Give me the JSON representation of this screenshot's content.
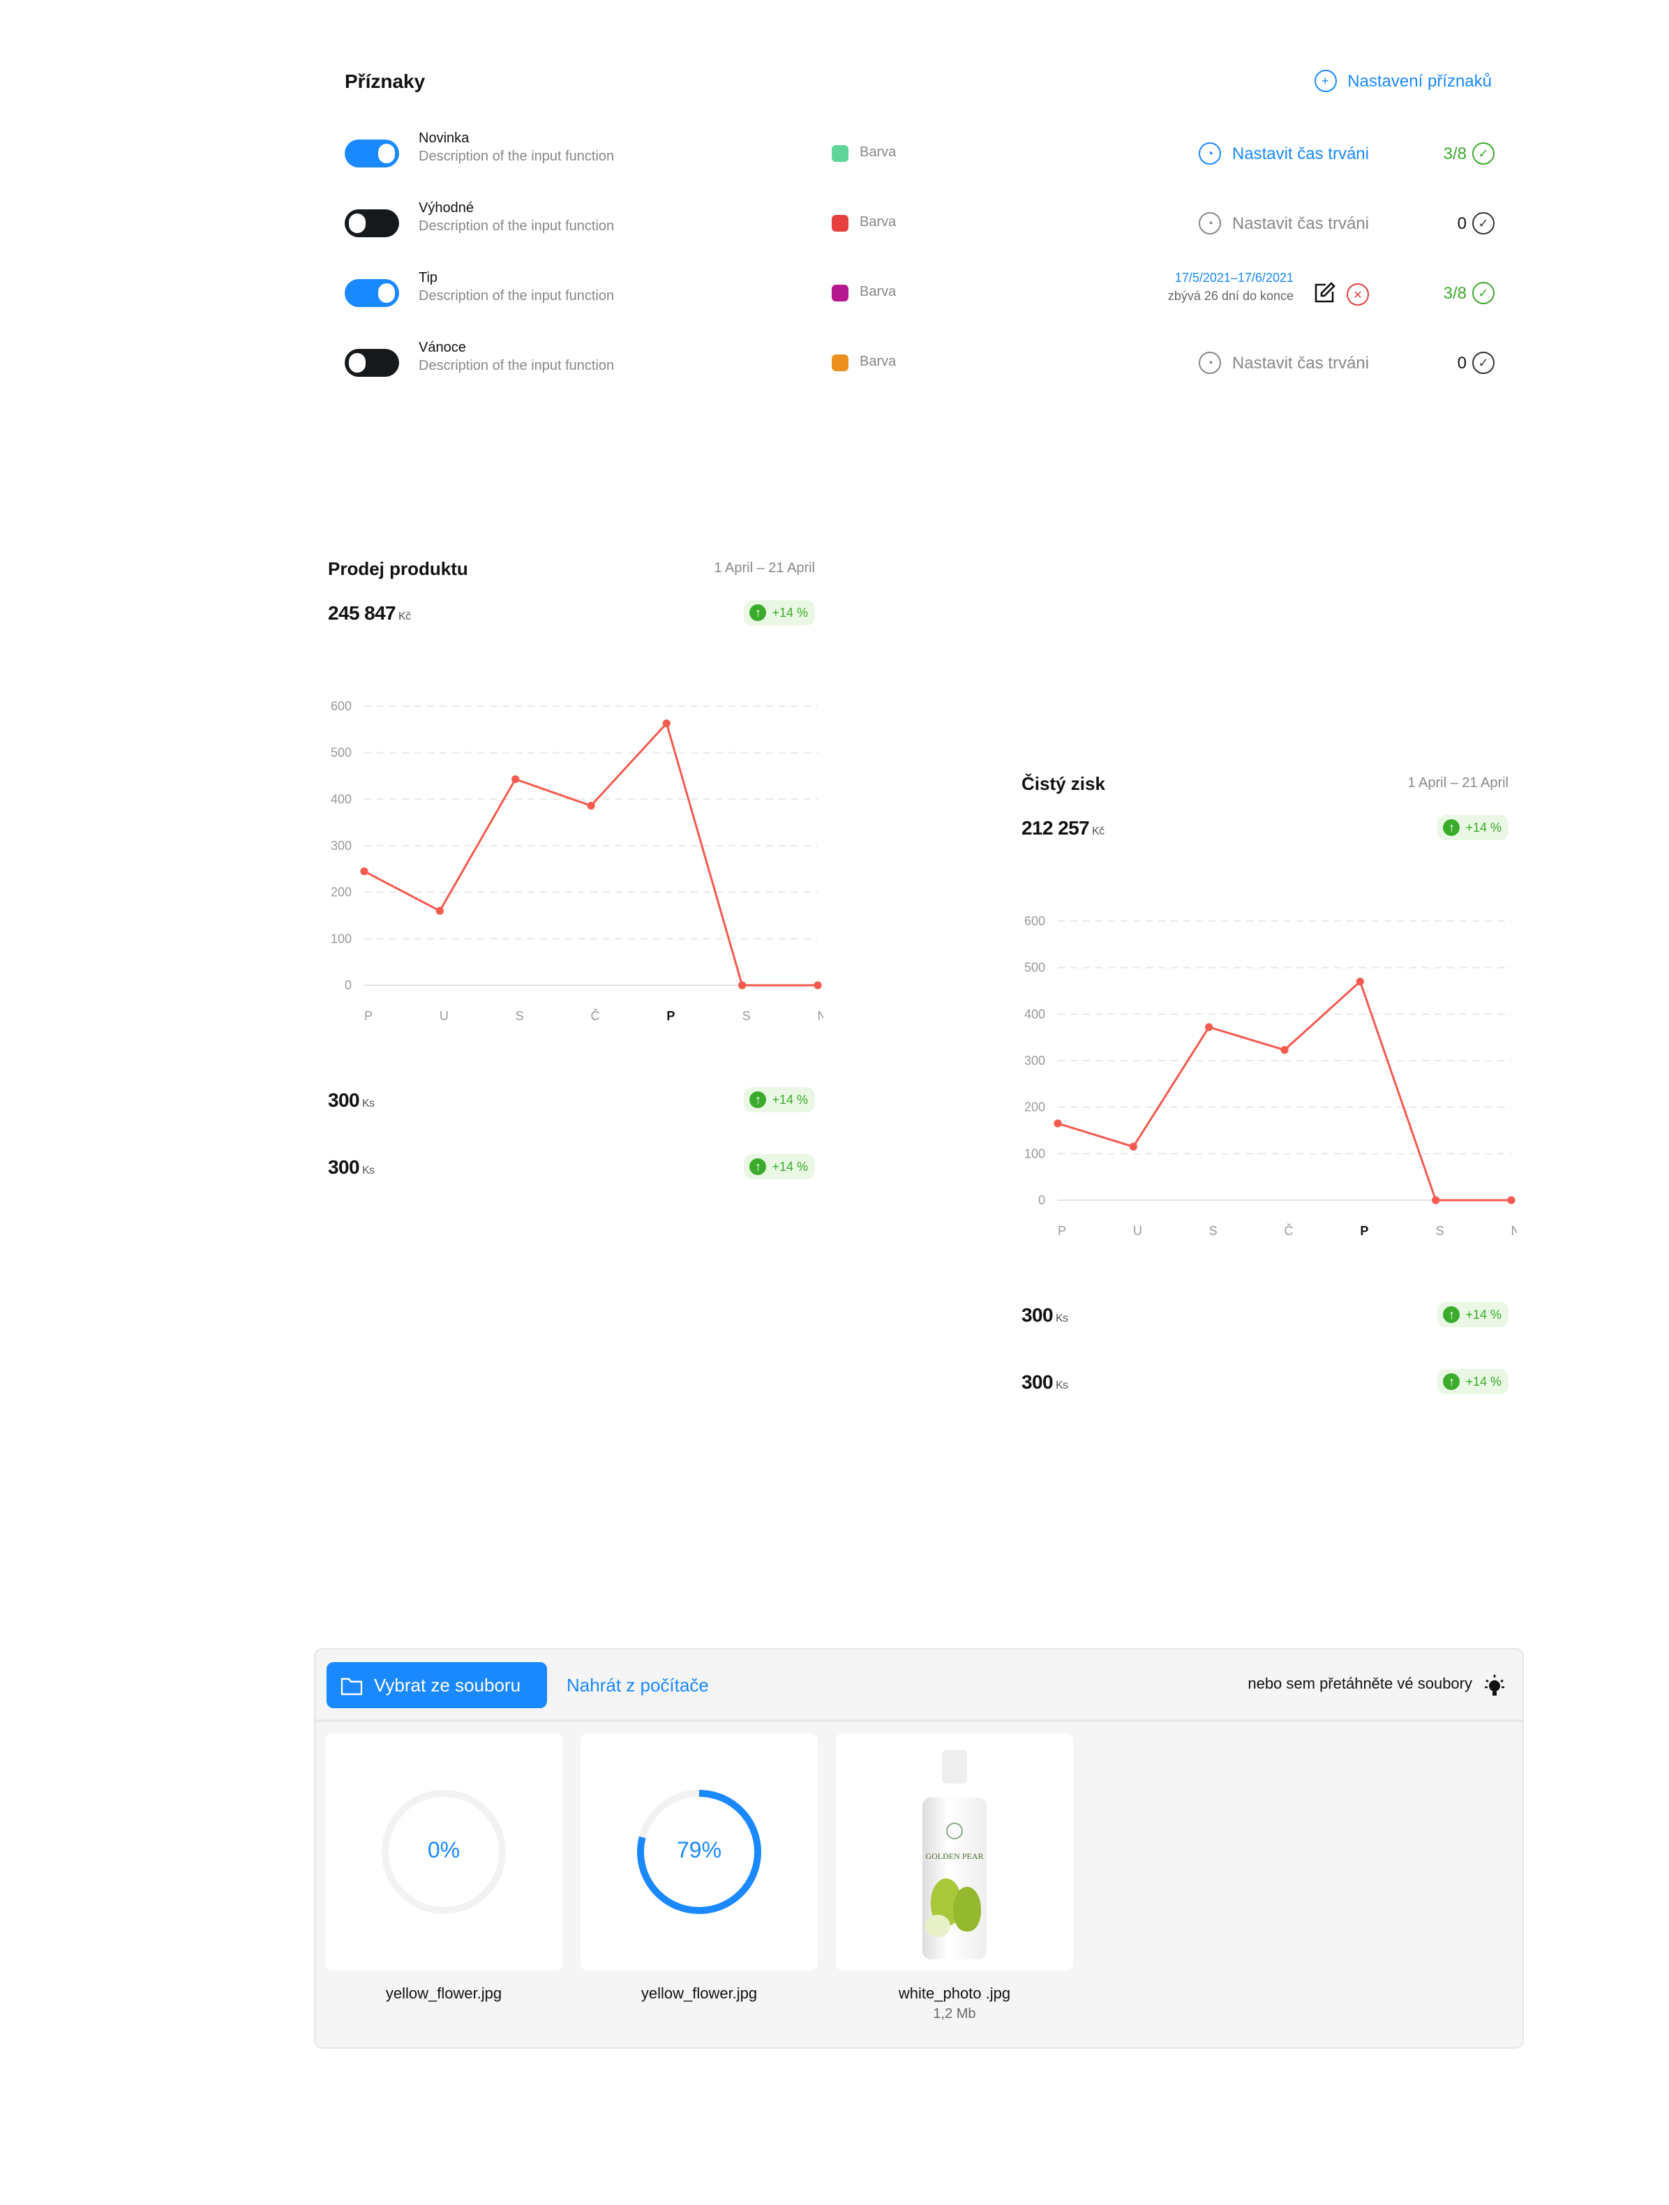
{
  "flags": {
    "title": "Příznaky",
    "settings_label": "Nastavení příznaků",
    "items": [
      {
        "name": "Novinka",
        "description": "Description of the input function",
        "enabled": true,
        "color": "#5ed69a",
        "color_label": "Barva",
        "duration_label": "Nastavit čas trváni",
        "duration_active": true,
        "count": "3/8",
        "count_active": true
      },
      {
        "name": "Výhodné",
        "description": "Description of the input function",
        "enabled": false,
        "color": "#e53f3f",
        "color_label": "Barva",
        "duration_label": "Nastavit čas trváni",
        "duration_active": false,
        "count": "0",
        "count_active": false
      },
      {
        "name": "Tip",
        "description": "Description of the input function",
        "enabled": true,
        "color": "#b5188f",
        "color_label": "Barva",
        "range": "17/5/2021–17/6/2021",
        "remaining": "zbývá 26 dní do konce",
        "count": "3/8",
        "count_active": true
      },
      {
        "name": "Vánoce",
        "description": "Description of the input function",
        "enabled": false,
        "color": "#ec8f1f",
        "color_label": "Barva",
        "duration_label": "Nastavit čas trváni",
        "duration_active": false,
        "count": "0",
        "count_active": false
      }
    ]
  },
  "cards": [
    {
      "title": "Prodej produktu",
      "date_range": "1 April – 21 April",
      "total": "245 847",
      "total_unit": "Kč",
      "change": "+14 %",
      "stats": [
        {
          "value": "300",
          "unit": "Ks",
          "change": "+14 %"
        },
        {
          "value": "300",
          "unit": "Ks",
          "change": "+14 %"
        }
      ]
    },
    {
      "title": "Čistý zisk",
      "date_range": "1 April – 21 April",
      "total": "212 257",
      "total_unit": "Kč",
      "change": "+14 %",
      "stats": [
        {
          "value": "300",
          "unit": "Ks",
          "change": "+14 %"
        },
        {
          "value": "300",
          "unit": "Ks",
          "change": "+14 %"
        }
      ]
    }
  ],
  "chart_data": [
    {
      "type": "line",
      "categories": [
        "P",
        "U",
        "S",
        "Č",
        "P",
        "S",
        "N"
      ],
      "highlight_category_index": 4,
      "values": [
        245,
        160,
        443,
        386,
        563,
        0,
        0
      ],
      "yticks": [
        0,
        100,
        200,
        300,
        400,
        500,
        600
      ],
      "ylim": [
        0,
        600
      ],
      "grid": true,
      "color": "#f55a4e"
    },
    {
      "type": "line",
      "categories": [
        "P",
        "U",
        "S",
        "Č",
        "P",
        "S",
        "N"
      ],
      "highlight_category_index": 4,
      "values": [
        165,
        115,
        372,
        323,
        470,
        0,
        0
      ],
      "yticks": [
        0,
        100,
        200,
        300,
        400,
        500,
        600
      ],
      "ylim": [
        0,
        600
      ],
      "grid": true,
      "color": "#f55a4e"
    }
  ],
  "upload": {
    "select_label": "Vybrat ze souboru",
    "upload_label": "Nahrát z počítače",
    "drop_label": "nebo sem přetáhněte vé soubory",
    "files": [
      {
        "name": "yellow_flower.jpg",
        "progress": 0,
        "progress_label": "0%"
      },
      {
        "name": "yellow_flower.jpg",
        "progress": 79,
        "progress_label": "79%"
      },
      {
        "name": "white_photo .jpg",
        "size": "1,2 Mb",
        "image_label": "GOLDEN PEAR"
      }
    ]
  },
  "colors": {
    "accent": "#1a88ff",
    "success": "#3bab2c",
    "line": "#f55a4e"
  }
}
